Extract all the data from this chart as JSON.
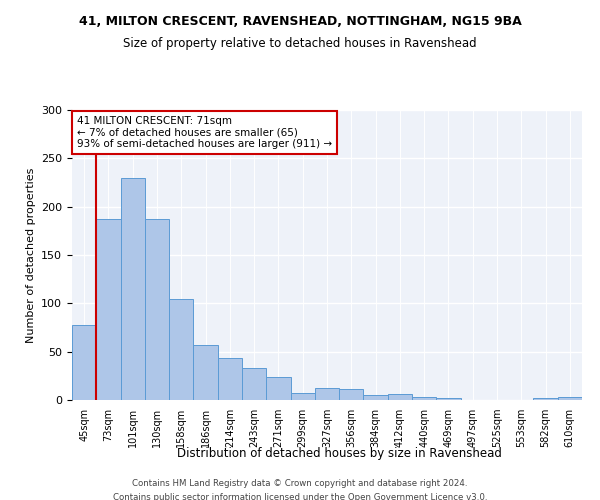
{
  "title1": "41, MILTON CRESCENT, RAVENSHEAD, NOTTINGHAM, NG15 9BA",
  "title2": "Size of property relative to detached houses in Ravenshead",
  "xlabel": "Distribution of detached houses by size in Ravenshead",
  "ylabel": "Number of detached properties",
  "footer1": "Contains HM Land Registry data © Crown copyright and database right 2024.",
  "footer2": "Contains public sector information licensed under the Open Government Licence v3.0.",
  "annotation_title": "41 MILTON CRESCENT: 71sqm",
  "annotation_line1": "← 7% of detached houses are smaller (65)",
  "annotation_line2": "93% of semi-detached houses are larger (911) →",
  "bar_values": [
    78,
    187,
    230,
    187,
    105,
    57,
    43,
    33,
    24,
    7,
    12,
    11,
    5,
    6,
    3,
    2,
    0,
    0,
    0,
    2,
    3
  ],
  "xlabels": [
    "45sqm",
    "73sqm",
    "101sqm",
    "130sqm",
    "158sqm",
    "186sqm",
    "214sqm",
    "243sqm",
    "271sqm",
    "299sqm",
    "327sqm",
    "356sqm",
    "384sqm",
    "412sqm",
    "440sqm",
    "469sqm",
    "497sqm",
    "525sqm",
    "553sqm",
    "582sqm",
    "610sqm"
  ],
  "bar_color": "#aec6e8",
  "bar_edge_color": "#5b9bd5",
  "marker_bin": 1,
  "marker_color": "#cc0000",
  "ylim": [
    0,
    300
  ],
  "yticks": [
    0,
    50,
    100,
    150,
    200,
    250,
    300
  ],
  "background_color": "#eef2f9",
  "annotation_box_color": "#ffffff",
  "annotation_box_edge": "#cc0000"
}
